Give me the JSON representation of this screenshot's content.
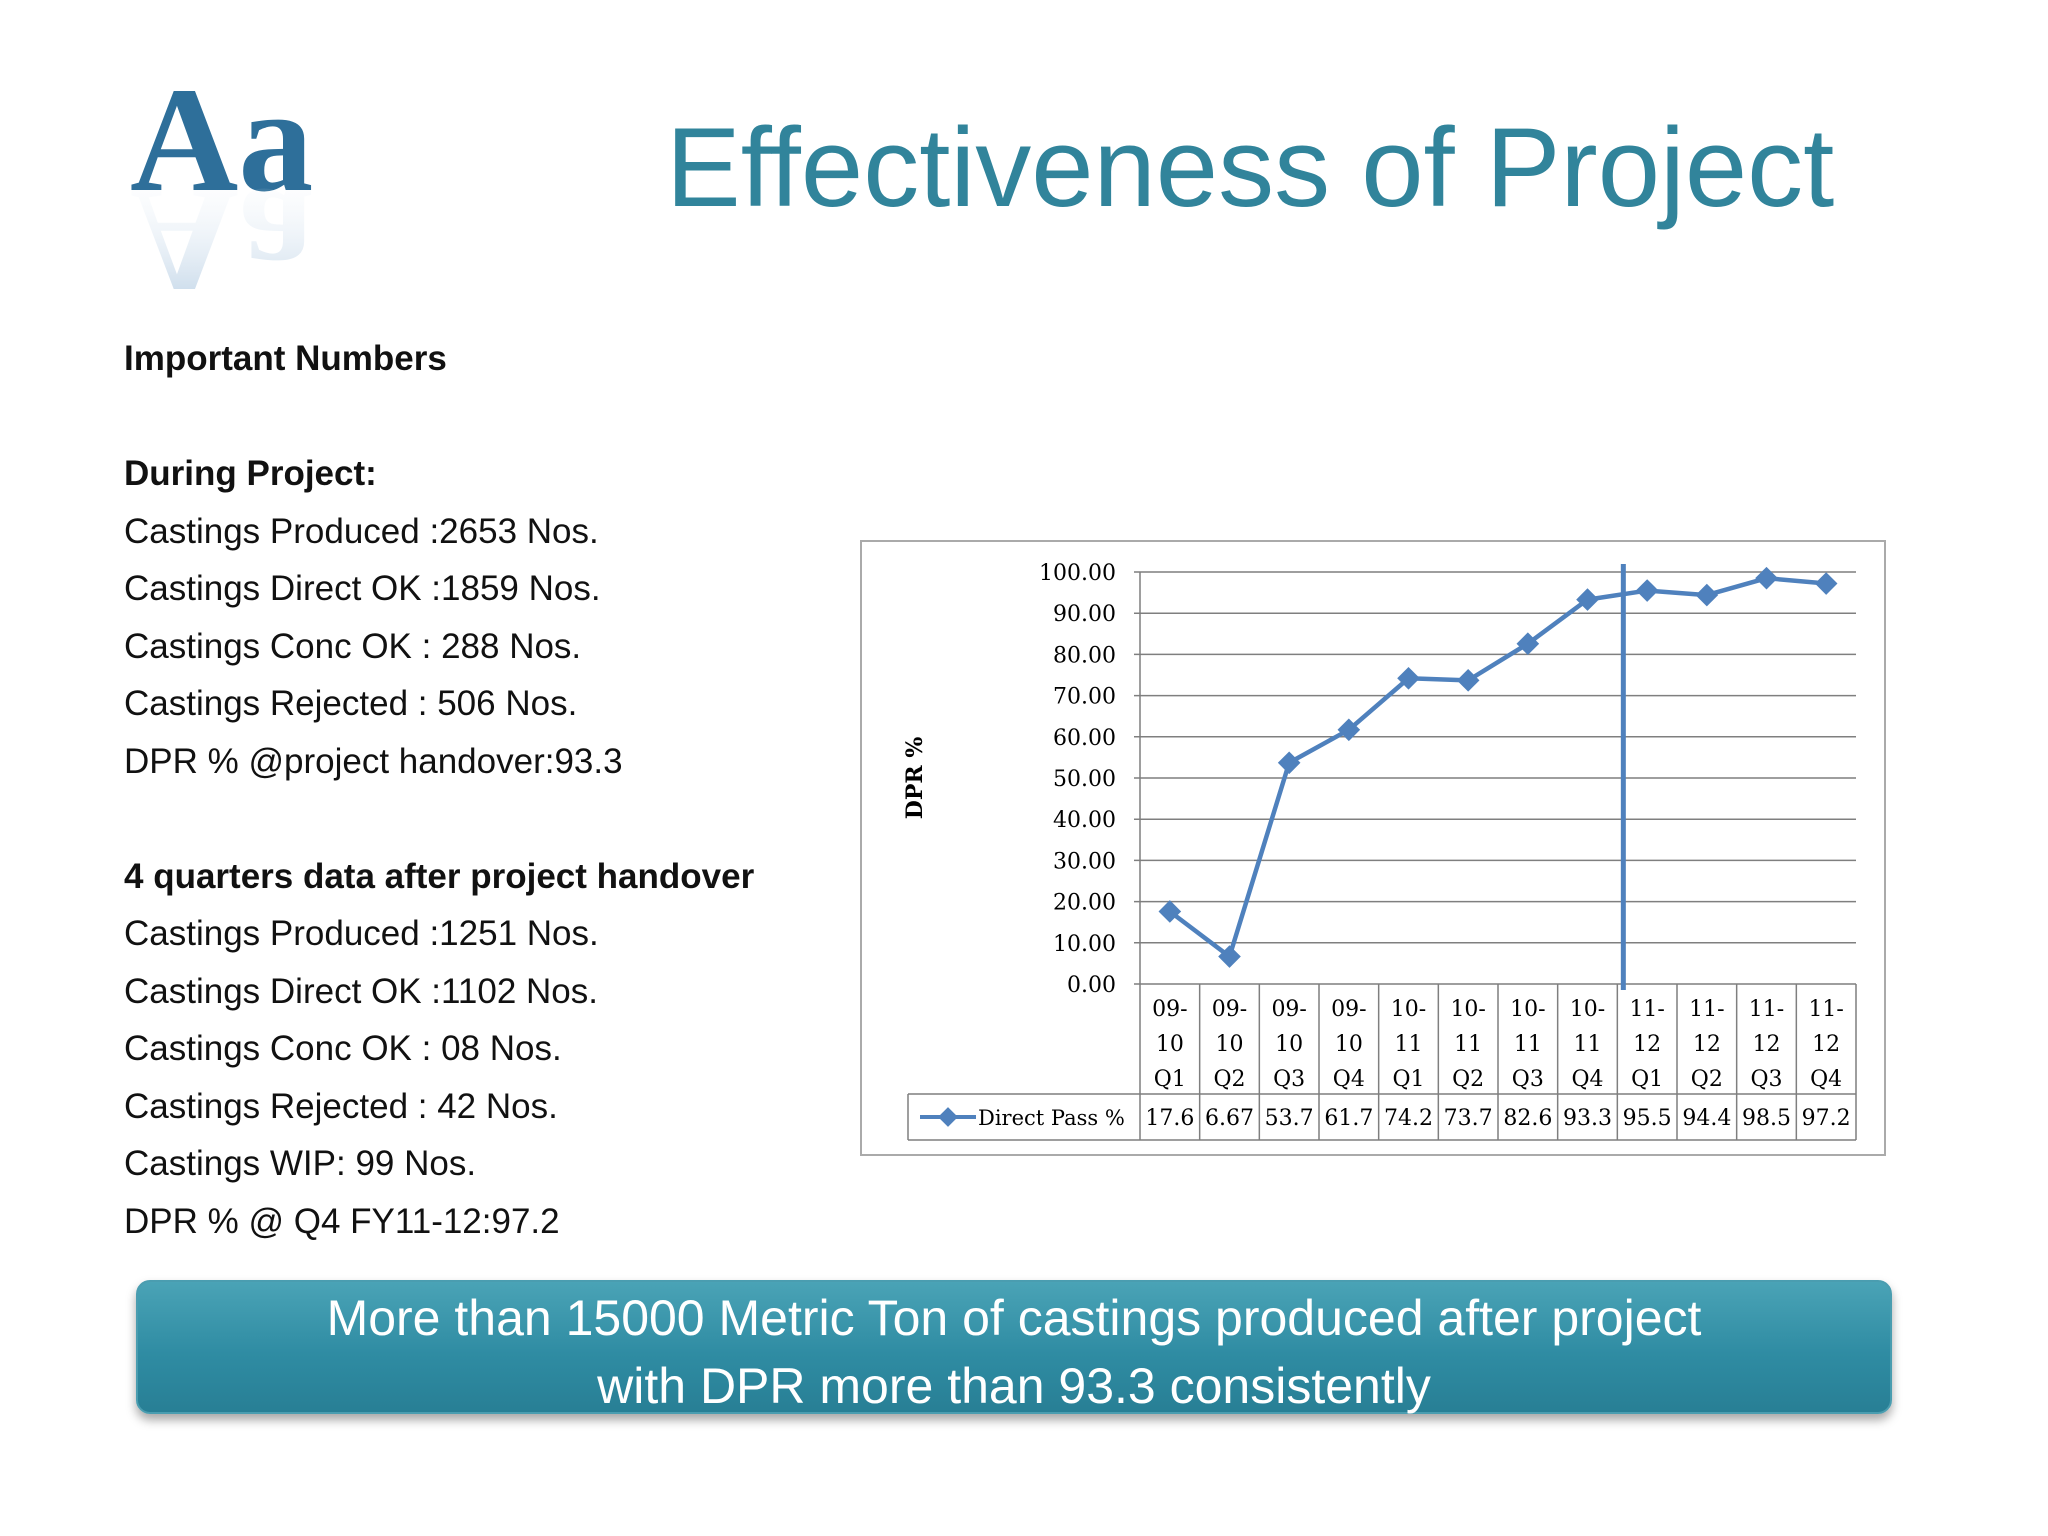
{
  "slide": {
    "title": "Effectiveness of Project",
    "logo_text": "Aa"
  },
  "left_panel": {
    "heading": "Important Numbers",
    "during": {
      "heading": "During Project:",
      "lines": [
        "Castings Produced :2653 Nos.",
        "Castings Direct OK :1859 Nos.",
        "Castings Conc OK : 288 Nos.",
        "Castings Rejected : 506 Nos.",
        "DPR % @project handover:93.3"
      ]
    },
    "after": {
      "heading": "4 quarters data after project handover",
      "lines": [
        "Castings Produced :1251 Nos.",
        "Castings Direct OK :1102 Nos.",
        "Castings Conc OK : 08 Nos.",
        "Castings Rejected : 42 Nos.",
        "Castings WIP: 99 Nos.",
        "DPR % @ Q4 FY11-12:97.2"
      ]
    }
  },
  "banner": {
    "line1": "More than 15000 Metric Ton of castings produced after project",
    "line2": "with DPR more than 93.3 consistently"
  },
  "chart_data": {
    "type": "line",
    "ylabel": "DPR %",
    "ylim": [
      0,
      100
    ],
    "yticks": [
      "0.00",
      "10.00",
      "20.00",
      "30.00",
      "40.00",
      "50.00",
      "60.00",
      "70.00",
      "80.00",
      "90.00",
      "100.00"
    ],
    "categories": [
      [
        "09-",
        "10",
        "Q1"
      ],
      [
        "09-",
        "10",
        "Q2"
      ],
      [
        "09-",
        "10",
        "Q3"
      ],
      [
        "09-",
        "10",
        "Q4"
      ],
      [
        "10-",
        "11",
        "Q1"
      ],
      [
        "10-",
        "11",
        "Q2"
      ],
      [
        "10-",
        "11",
        "Q3"
      ],
      [
        "10-",
        "11",
        "Q4"
      ],
      [
        "11-",
        "12",
        "Q1"
      ],
      [
        "11-",
        "12",
        "Q2"
      ],
      [
        "11-",
        "12",
        "Q3"
      ],
      [
        "11-",
        "12",
        "Q4"
      ]
    ],
    "series": [
      {
        "name": "Direct Pass %",
        "values": [
          17.6,
          6.67,
          53.7,
          61.7,
          74.2,
          73.7,
          82.6,
          93.3,
          95.5,
          94.4,
          98.5,
          97.2
        ],
        "labels": [
          "17.6",
          "6.67",
          "53.7",
          "61.7",
          "74.2",
          "73.7",
          "82.6",
          "93.3",
          "95.5",
          "94.4",
          "98.5",
          "97.2"
        ]
      }
    ],
    "marker_after_category_index": 7,
    "grid": true,
    "legend": "data-table",
    "color": "#4F81BD"
  }
}
